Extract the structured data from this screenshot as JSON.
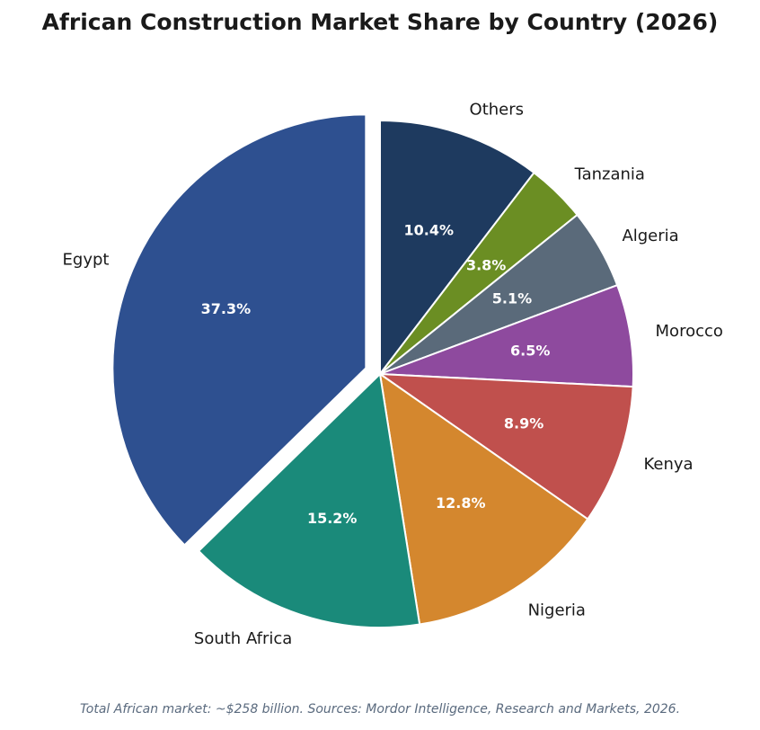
{
  "chart_data": {
    "type": "pie",
    "title": "African Construction Market Share by Country (2026)",
    "categories": [
      "Others",
      "Tanzania",
      "Algeria",
      "Morocco",
      "Kenya",
      "Nigeria",
      "South Africa",
      "Egypt"
    ],
    "values": [
      10.4,
      3.8,
      5.1,
      6.5,
      8.9,
      12.8,
      15.2,
      37.3
    ],
    "value_labels": [
      "10.4%",
      "3.8%",
      "5.1%",
      "6.5%",
      "8.9%",
      "12.8%",
      "15.2%",
      "37.3%"
    ],
    "colors": [
      "#1e3a5f",
      "#6b8e23",
      "#5a6a7a",
      "#8e4a9e",
      "#c0504d",
      "#d4872e",
      "#1a8a7a",
      "#2e5090"
    ],
    "exploded": [
      "Egypt"
    ],
    "start_angle": "top, clockwise"
  },
  "footnote": "Total African market: ~$258 billion. Sources: Mordor Intelligence, Research and Markets, 2026."
}
